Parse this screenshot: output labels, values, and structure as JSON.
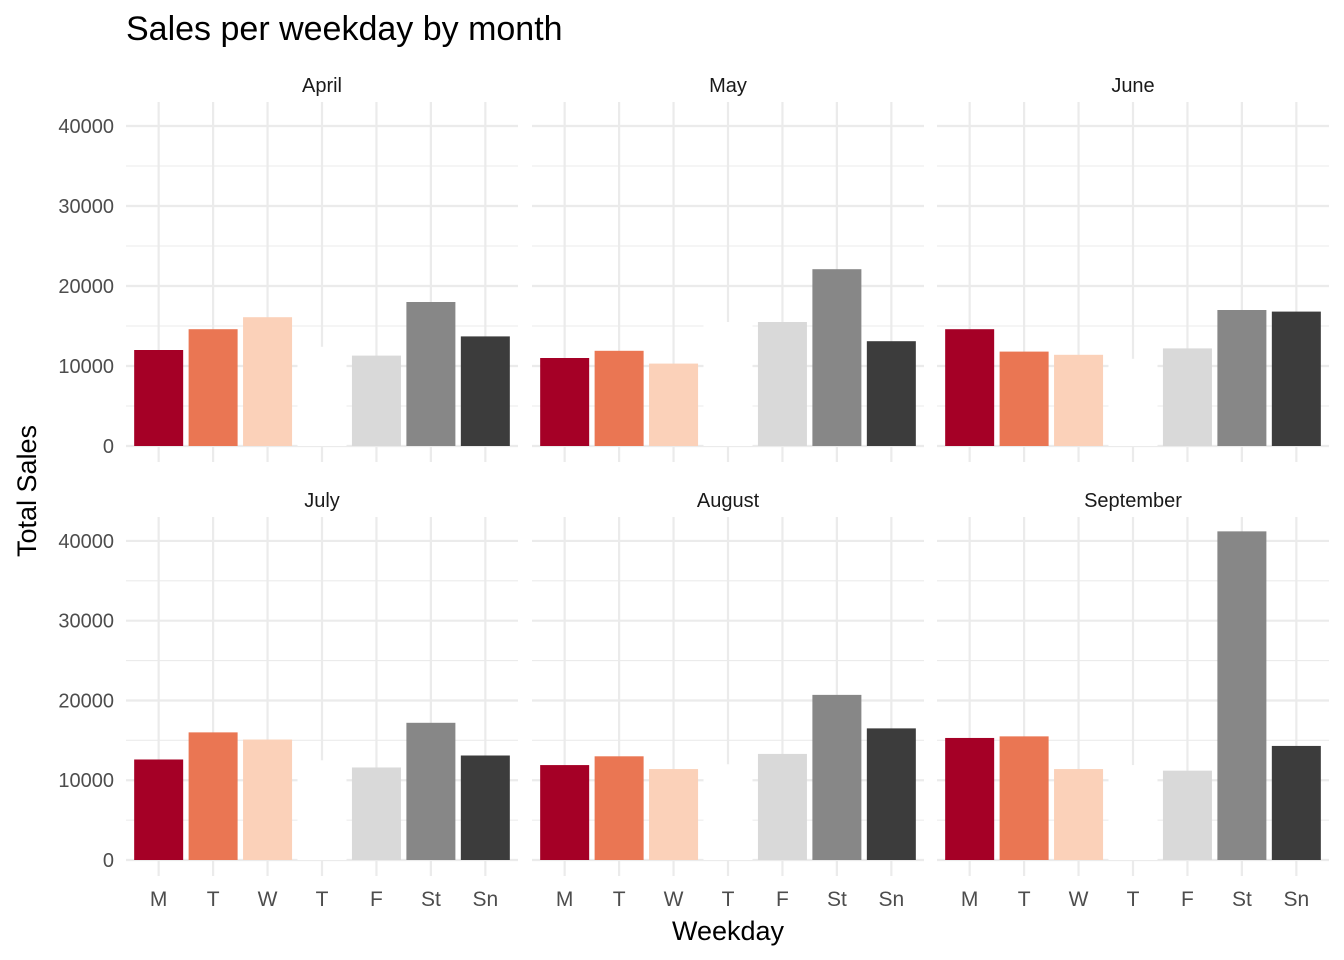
{
  "chart_data": {
    "type": "bar",
    "title": "Sales per weekday by month",
    "xlabel": "Weekday",
    "ylabel": "Total Sales",
    "categories": [
      "M",
      "T",
      "W",
      "T",
      "F",
      "St",
      "Sn"
    ],
    "colors": [
      "#a50026",
      "#ea7653",
      "#fbd1b9",
      "#ffffff",
      "#d9d9d9",
      "#878787",
      "#3c3c3c"
    ],
    "ylim": [
      0,
      43000
    ],
    "yticks": [
      0,
      10000,
      20000,
      30000,
      40000
    ],
    "grid": true,
    "legend": "none",
    "facets": [
      {
        "name": "April",
        "values": [
          12000,
          14600,
          16100,
          12400,
          11300,
          18000,
          13700
        ]
      },
      {
        "name": "May",
        "values": [
          11000,
          11900,
          10300,
          15500,
          15500,
          22100,
          13100
        ]
      },
      {
        "name": "June",
        "values": [
          14600,
          11800,
          11400,
          10900,
          12200,
          17000,
          16800
        ]
      },
      {
        "name": "July",
        "values": [
          12600,
          16000,
          15100,
          12500,
          11600,
          17200,
          13100
        ]
      },
      {
        "name": "August",
        "values": [
          11900,
          13000,
          11400,
          12000,
          13300,
          20700,
          16500
        ]
      },
      {
        "name": "September",
        "values": [
          15300,
          15500,
          11400,
          11900,
          11200,
          41200,
          14300
        ]
      }
    ]
  }
}
